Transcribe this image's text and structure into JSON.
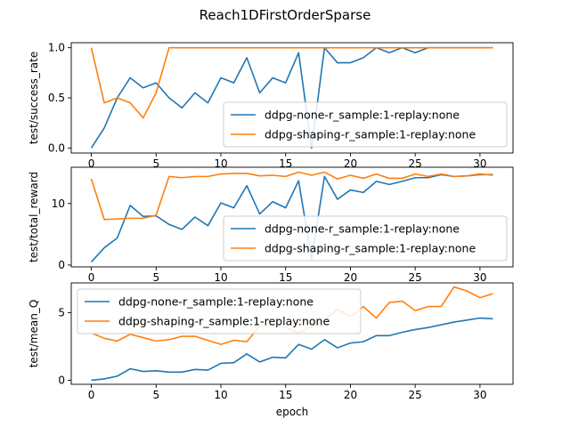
{
  "figure": {
    "suptitle": "Reach1DFirstOrderSparse"
  },
  "colors": {
    "series0": "#1f77b4",
    "series1": "#ff7f0e",
    "axis": "#000000",
    "legend_edge": "#cccccc"
  },
  "chart_data": [
    {
      "type": "line",
      "title": "",
      "xlabel": "",
      "ylabel": "test/success_rate",
      "xlim": [
        -1.55,
        32.55
      ],
      "ylim": [
        -0.05,
        1.05
      ],
      "xticks": [
        0,
        5,
        10,
        15,
        20,
        25,
        30
      ],
      "yticks": [
        0.0,
        0.5,
        1.0
      ],
      "ytick_labels": [
        "0.0",
        "0.5",
        "1.0"
      ],
      "grid": false,
      "legend": "lower-right",
      "x": [
        0,
        1,
        2,
        3,
        4,
        5,
        6,
        7,
        8,
        9,
        10,
        11,
        12,
        13,
        14,
        15,
        16,
        17,
        18,
        19,
        20,
        21,
        22,
        23,
        24,
        25,
        26,
        27,
        28,
        29,
        30,
        31
      ],
      "series": [
        {
          "name": "ddpg-none-r_sample:1-replay:none",
          "values": [
            0.0,
            0.2,
            0.5,
            0.7,
            0.6,
            0.65,
            0.5,
            0.4,
            0.55,
            0.45,
            0.7,
            0.65,
            0.9,
            0.55,
            0.7,
            0.65,
            0.95,
            0.0,
            1.0,
            0.85,
            0.85,
            0.9,
            1.0,
            0.95,
            1.0,
            0.95,
            1.0,
            1.0,
            1.0,
            1.0,
            1.0,
            1.0
          ]
        },
        {
          "name": "ddpg-shaping-r_sample:1-replay:none",
          "values": [
            1.0,
            0.45,
            0.5,
            0.45,
            0.3,
            0.55,
            1.0,
            1.0,
            1.0,
            1.0,
            1.0,
            1.0,
            1.0,
            1.0,
            1.0,
            1.0,
            1.0,
            1.0,
            1.0,
            1.0,
            1.0,
            1.0,
            1.0,
            1.0,
            1.0,
            1.0,
            1.0,
            1.0,
            1.0,
            1.0,
            1.0,
            1.0
          ]
        }
      ]
    },
    {
      "type": "line",
      "title": "",
      "xlabel": "",
      "ylabel": "test/total_reward",
      "xlim": [
        -1.55,
        32.55
      ],
      "ylim": [
        -0.3,
        15.9
      ],
      "xticks": [
        0,
        5,
        10,
        15,
        20,
        25,
        30
      ],
      "yticks": [
        0,
        10
      ],
      "ytick_labels": [
        "0",
        "10"
      ],
      "grid": false,
      "legend": "lower-right",
      "x": [
        0,
        1,
        2,
        3,
        4,
        5,
        6,
        7,
        8,
        9,
        10,
        11,
        12,
        13,
        14,
        15,
        16,
        17,
        18,
        19,
        20,
        21,
        22,
        23,
        24,
        25,
        26,
        27,
        28,
        29,
        30,
        31
      ],
      "series": [
        {
          "name": "ddpg-none-r_sample:1-replay:none",
          "values": [
            0.5,
            2.8,
            4.4,
            9.7,
            7.9,
            8.0,
            6.6,
            5.8,
            7.8,
            6.4,
            10.1,
            9.3,
            12.9,
            8.3,
            10.3,
            9.3,
            13.7,
            1.0,
            14.4,
            10.7,
            12.2,
            11.8,
            13.6,
            13.1,
            13.6,
            14.2,
            14.2,
            14.7,
            14.4,
            14.5,
            14.7,
            14.7
          ]
        },
        {
          "name": "ddpg-shaping-r_sample:1-replay:none",
          "values": [
            14.0,
            7.4,
            7.5,
            7.6,
            7.6,
            8.1,
            14.4,
            14.2,
            14.4,
            14.4,
            14.8,
            14.9,
            14.9,
            14.5,
            14.6,
            14.4,
            15.1,
            14.6,
            15.1,
            14.0,
            14.6,
            14.1,
            14.8,
            14.1,
            14.1,
            14.8,
            14.4,
            14.8,
            14.4,
            14.5,
            14.8,
            14.6
          ]
        }
      ]
    },
    {
      "type": "line",
      "title": "",
      "xlabel": "epoch",
      "ylabel": "test/mean_Q",
      "xlim": [
        -1.55,
        32.55
      ],
      "ylim": [
        -0.3,
        7.2
      ],
      "xticks": [
        0,
        5,
        10,
        15,
        20,
        25,
        30
      ],
      "yticks": [
        0,
        5
      ],
      "ytick_labels": [
        "0",
        "5"
      ],
      "grid": false,
      "legend": "upper-left",
      "x": [
        0,
        1,
        2,
        3,
        4,
        5,
        6,
        7,
        8,
        9,
        10,
        11,
        12,
        13,
        14,
        15,
        16,
        17,
        18,
        19,
        20,
        21,
        22,
        23,
        24,
        25,
        26,
        27,
        28,
        29,
        30,
        31
      ],
      "series": [
        {
          "name": "ddpg-none-r_sample:1-replay:none",
          "values": [
            0.0,
            0.1,
            0.3,
            0.85,
            0.65,
            0.7,
            0.6,
            0.6,
            0.8,
            0.75,
            1.25,
            1.3,
            1.95,
            1.35,
            1.7,
            1.65,
            2.65,
            2.3,
            3.0,
            2.4,
            2.75,
            2.85,
            3.3,
            3.3,
            3.55,
            3.75,
            3.9,
            4.1,
            4.3,
            4.45,
            4.6,
            4.55
          ]
        },
        {
          "name": "ddpg-shaping-r_sample:1-replay:none",
          "values": [
            3.5,
            3.1,
            2.9,
            3.4,
            3.15,
            2.9,
            3.0,
            3.25,
            3.25,
            2.95,
            2.65,
            2.95,
            2.85,
            4.0,
            4.05,
            3.9,
            3.5,
            3.95,
            4.45,
            5.25,
            4.7,
            5.45,
            4.6,
            5.75,
            5.85,
            5.15,
            5.45,
            5.45,
            6.9,
            6.6,
            6.1,
            6.4
          ]
        }
      ]
    }
  ]
}
